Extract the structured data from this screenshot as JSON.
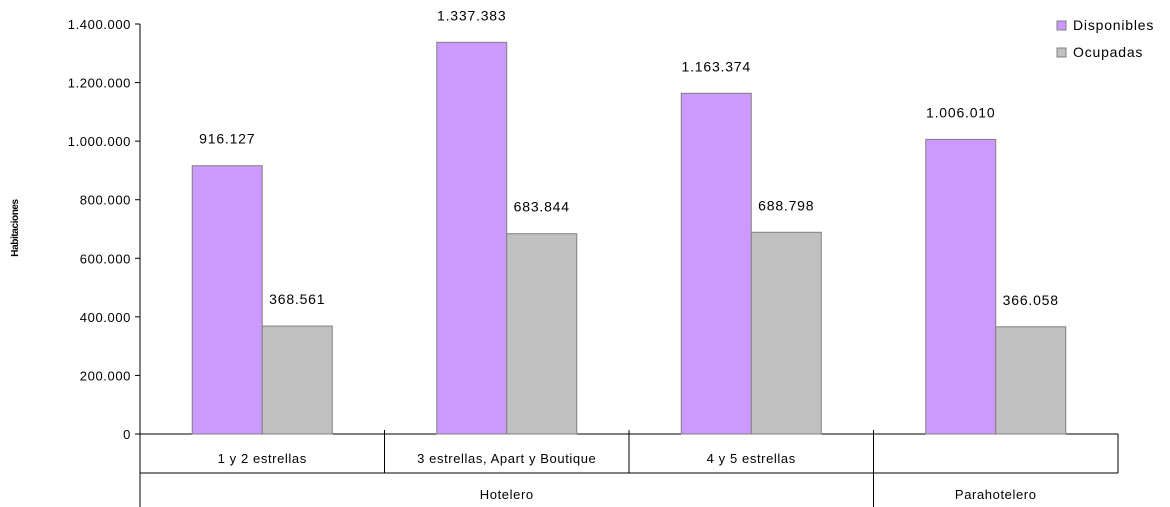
{
  "chart_data": {
    "type": "bar",
    "title": "",
    "ylabel": "Habitaciones",
    "ylim": [
      0,
      1400000
    ],
    "yticks": [
      0,
      200000,
      400000,
      600000,
      800000,
      1000000,
      1200000,
      1400000
    ],
    "ytick_labels": [
      "0",
      "200.000",
      "400.000",
      "600.000",
      "800.000",
      "1.000.000",
      "1.200.000",
      "1.400.000"
    ],
    "categories": [
      "1 y 2 estrellas",
      "3 estrellas, Apart y Boutique",
      "4 y 5 estrellas",
      ""
    ],
    "groups": [
      {
        "label": "Hotelero",
        "categories": [
          "1 y 2 estrellas",
          "3 estrellas, Apart y Boutique",
          "4 y 5 estrellas"
        ]
      },
      {
        "label": "Parahotelero",
        "categories": [
          ""
        ]
      }
    ],
    "series": [
      {
        "name": "Disponibles",
        "color": "#cc99ff",
        "values": [
          916127,
          1337383,
          1163374,
          1006010
        ],
        "labels": [
          "916.127",
          "1.337.383",
          "1.163.374",
          "1.006.010"
        ]
      },
      {
        "name": "Ocupadas",
        "color": "#c0c0c0",
        "values": [
          368561,
          683844,
          688798,
          366058
        ],
        "labels": [
          "368.561",
          "683.844",
          "688.798",
          "366.058"
        ]
      }
    ],
    "legend_position": "top-right",
    "grid": false
  }
}
